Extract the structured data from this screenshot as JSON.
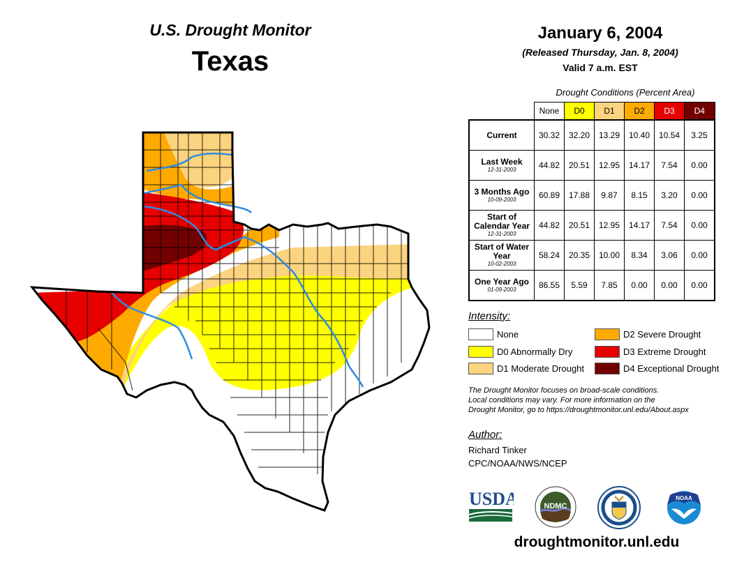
{
  "header": {
    "title": "U.S. Drought Monitor",
    "region": "Texas",
    "date": "January 6, 2004",
    "released": "(Released Thursday, Jan. 8, 2004)",
    "valid": "Valid 7 a.m. EST"
  },
  "table": {
    "caption": "Drought Conditions (Percent Area)",
    "columns": [
      {
        "label": "None",
        "color": "#ffffff",
        "text_color": "#000000"
      },
      {
        "label": "D0",
        "color": "#ffff00",
        "text_color": "#000000"
      },
      {
        "label": "D1",
        "color": "#fcd37f",
        "text_color": "#000000"
      },
      {
        "label": "D2",
        "color": "#ffaa00",
        "text_color": "#000000"
      },
      {
        "label": "D3",
        "color": "#e60000",
        "text_color": "#ffffff"
      },
      {
        "label": "D4",
        "color": "#730000",
        "text_color": "#ffffff"
      }
    ],
    "rows": [
      {
        "label": "Current",
        "sub": "",
        "values": [
          "30.32",
          "32.20",
          "13.29",
          "10.40",
          "10.54",
          "3.25"
        ]
      },
      {
        "label": "Last Week",
        "sub": "12-31-2003",
        "values": [
          "44.82",
          "20.51",
          "12.95",
          "14.17",
          "7.54",
          "0.00"
        ]
      },
      {
        "label": "3 Months Ago",
        "sub": "10-09-2003",
        "values": [
          "60.89",
          "17.88",
          "9.87",
          "8.15",
          "3.20",
          "0.00"
        ]
      },
      {
        "label": "Start of Calendar Year",
        "sub": "12-31-2003",
        "values": [
          "44.82",
          "20.51",
          "12.95",
          "14.17",
          "7.54",
          "0.00"
        ]
      },
      {
        "label": "Start of Water Year",
        "sub": "10-02-2003",
        "values": [
          "58.24",
          "20.35",
          "10.00",
          "8.34",
          "3.06",
          "0.00"
        ]
      },
      {
        "label": "One Year Ago",
        "sub": "01-09-2003",
        "values": [
          "86.55",
          "5.59",
          "7.85",
          "0.00",
          "0.00",
          "0.00"
        ]
      }
    ]
  },
  "legend": {
    "title": "Intensity:",
    "items": [
      {
        "label": "None",
        "color": "#ffffff"
      },
      {
        "label": "D0 Abnormally Dry",
        "color": "#ffff00"
      },
      {
        "label": "D1 Moderate Drought",
        "color": "#fcd37f"
      },
      {
        "label": "D2 Severe Drought",
        "color": "#ffaa00"
      },
      {
        "label": "D3 Extreme Drought",
        "color": "#e60000"
      },
      {
        "label": "D4 Exceptional Drought",
        "color": "#730000"
      }
    ]
  },
  "note": {
    "line1": "The Drought Monitor focuses on broad-scale conditions.",
    "line2": "Local conditions may vary. For more information on the",
    "line3": "Drought Monitor, go to https://droughtmonitor.unl.edu/About.aspx"
  },
  "author": {
    "title": "Author:",
    "name": "Richard Tinker",
    "org": "CPC/NOAA/NWS/NCEP"
  },
  "logos": {
    "usda": "USDA",
    "ndmc": "NDMC",
    "noaa": "NOAA"
  },
  "site": "droughtmonitor.unl.edu",
  "map": {
    "state": "Texas",
    "river_color": "#2e8bdf",
    "border_color": "#000000"
  }
}
